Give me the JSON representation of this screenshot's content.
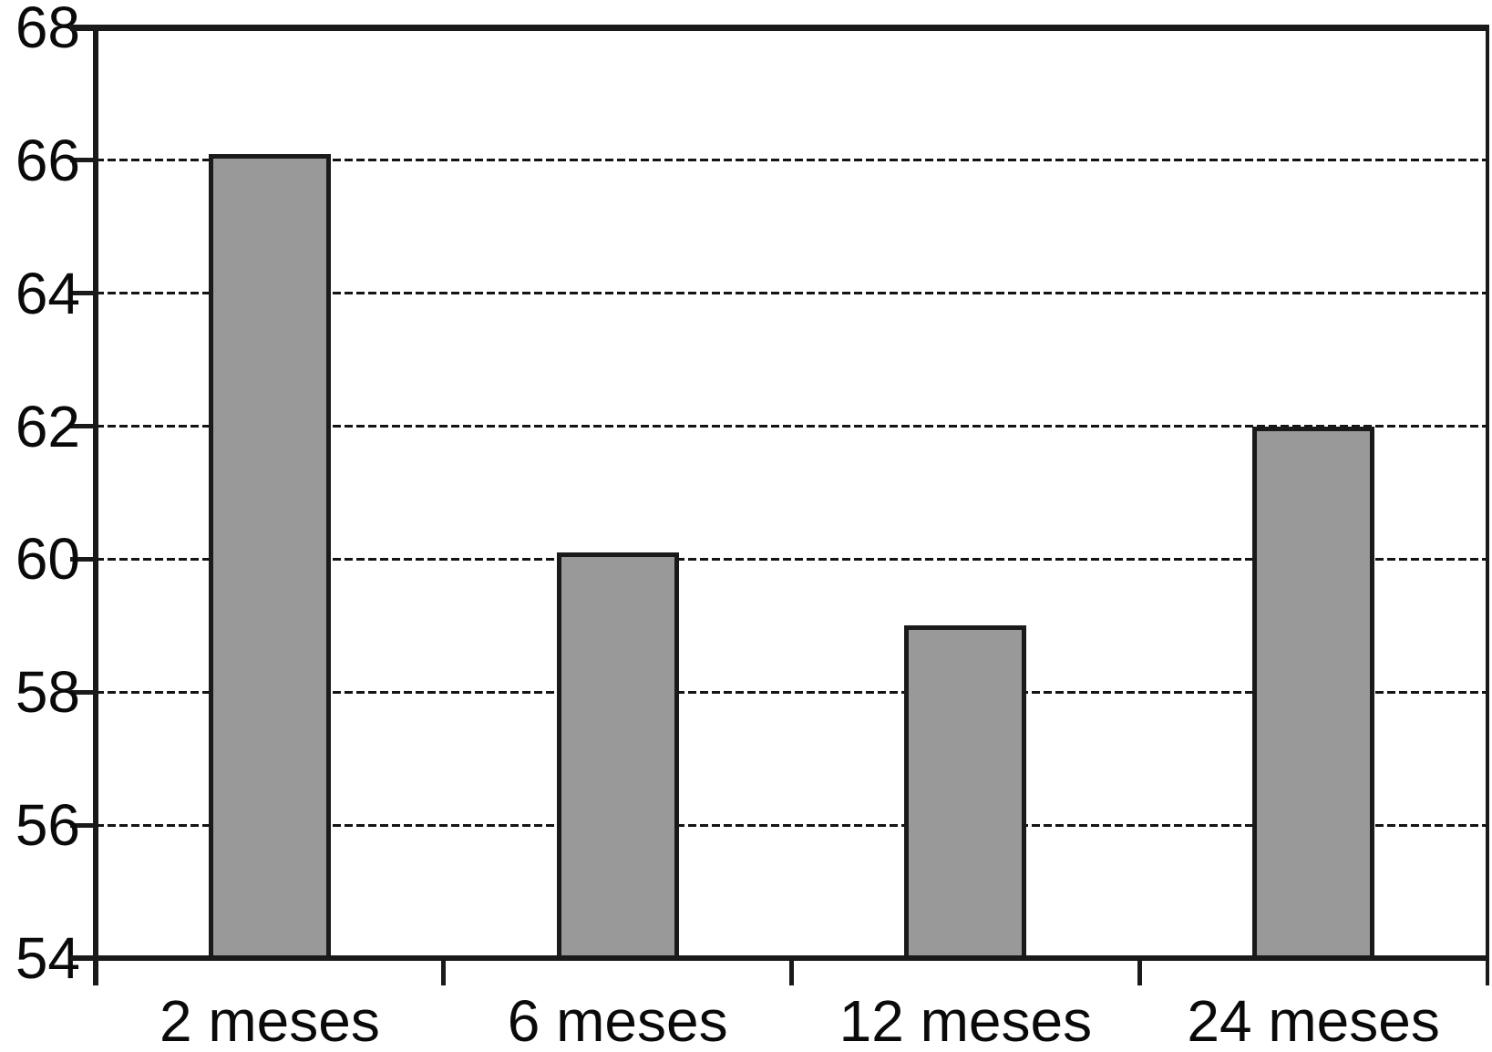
{
  "chart_data": {
    "type": "bar",
    "categories": [
      "2 meses",
      "6 meses",
      "12 meses",
      "24 meses"
    ],
    "values": [
      66.1,
      60.1,
      59.0,
      62.0
    ],
    "title": "",
    "xlabel": "",
    "ylabel": "",
    "ylim": [
      54,
      68
    ],
    "yticks": [
      54,
      56,
      58,
      60,
      62,
      64,
      66,
      68
    ],
    "gridline_values": [
      56,
      58,
      60,
      62,
      64,
      66
    ],
    "grid_style": "dashed-horizontal",
    "legend_position": "none",
    "colors": {
      "bar_fill": "#999999",
      "bar_border": "#1a1a1a",
      "axis": "#1a1a1a",
      "text": "#0a0a0a",
      "background": "#ffffff"
    }
  }
}
